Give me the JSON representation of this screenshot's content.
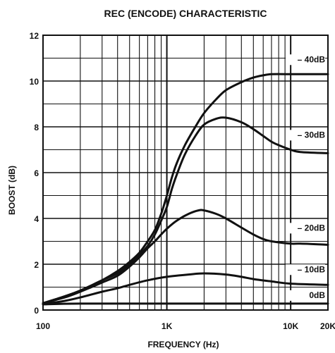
{
  "chart_data": {
    "type": "line",
    "title": "REC (ENCODE) CHARACTERISTIC",
    "xlabel": "FREQUENCY (Hz)",
    "ylabel": "BOOST (dB)",
    "x_scale": "log",
    "xlim": [
      100,
      20000
    ],
    "ylim": [
      0,
      12
    ],
    "grid": true,
    "x_tick_labels": [
      {
        "value": 100,
        "label": "100"
      },
      {
        "value": 1000,
        "label": "1K"
      },
      {
        "value": 10000,
        "label": "10K"
      },
      {
        "value": 20000,
        "label": "20K"
      }
    ],
    "y_ticks": [
      0,
      2,
      4,
      6,
      8,
      10,
      12
    ],
    "series": [
      {
        "name": "40dB",
        "label": "– 40dB",
        "points": [
          [
            100,
            0.3
          ],
          [
            150,
            0.6
          ],
          [
            200,
            0.85
          ],
          [
            300,
            1.3
          ],
          [
            400,
            1.7
          ],
          [
            500,
            2.1
          ],
          [
            600,
            2.5
          ],
          [
            700,
            3.0
          ],
          [
            800,
            3.5
          ],
          [
            900,
            4.2
          ],
          [
            1000,
            5.0
          ],
          [
            1100,
            5.8
          ],
          [
            1200,
            6.4
          ],
          [
            1400,
            7.2
          ],
          [
            1700,
            8.0
          ],
          [
            2000,
            8.6
          ],
          [
            2500,
            9.2
          ],
          [
            3000,
            9.6
          ],
          [
            4000,
            9.95
          ],
          [
            5000,
            10.15
          ],
          [
            6000,
            10.25
          ],
          [
            7000,
            10.3
          ],
          [
            10000,
            10.3
          ],
          [
            12000,
            10.3
          ],
          [
            20000,
            10.3
          ]
        ]
      },
      {
        "name": "30dB",
        "label": "– 30dB",
        "points": [
          [
            100,
            0.3
          ],
          [
            150,
            0.6
          ],
          [
            200,
            0.85
          ],
          [
            300,
            1.3
          ],
          [
            400,
            1.6
          ],
          [
            500,
            2.0
          ],
          [
            600,
            2.4
          ],
          [
            700,
            2.8
          ],
          [
            800,
            3.3
          ],
          [
            900,
            3.9
          ],
          [
            1000,
            4.5
          ],
          [
            1100,
            5.3
          ],
          [
            1200,
            5.9
          ],
          [
            1400,
            6.8
          ],
          [
            1700,
            7.6
          ],
          [
            2000,
            8.1
          ],
          [
            2500,
            8.35
          ],
          [
            3000,
            8.4
          ],
          [
            4000,
            8.2
          ],
          [
            5000,
            7.9
          ],
          [
            6000,
            7.6
          ],
          [
            7000,
            7.35
          ],
          [
            8000,
            7.2
          ],
          [
            10000,
            7.0
          ],
          [
            12000,
            6.9
          ],
          [
            20000,
            6.85
          ]
        ]
      },
      {
        "name": "20dB",
        "label": "– 20dB",
        "points": [
          [
            100,
            0.3
          ],
          [
            150,
            0.55
          ],
          [
            200,
            0.8
          ],
          [
            300,
            1.2
          ],
          [
            400,
            1.5
          ],
          [
            500,
            1.9
          ],
          [
            600,
            2.3
          ],
          [
            700,
            2.7
          ],
          [
            800,
            3.0
          ],
          [
            900,
            3.3
          ],
          [
            1000,
            3.55
          ],
          [
            1200,
            3.9
          ],
          [
            1500,
            4.2
          ],
          [
            1800,
            4.35
          ],
          [
            2000,
            4.35
          ],
          [
            2500,
            4.2
          ],
          [
            3000,
            4.0
          ],
          [
            4000,
            3.6
          ],
          [
            5000,
            3.3
          ],
          [
            6000,
            3.1
          ],
          [
            7000,
            3.0
          ],
          [
            10000,
            2.9
          ],
          [
            12000,
            2.9
          ],
          [
            20000,
            2.85
          ]
        ]
      },
      {
        "name": "10dB",
        "label": "– 10dB",
        "points": [
          [
            100,
            0.25
          ],
          [
            150,
            0.4
          ],
          [
            200,
            0.55
          ],
          [
            300,
            0.8
          ],
          [
            400,
            0.95
          ],
          [
            500,
            1.1
          ],
          [
            700,
            1.3
          ],
          [
            1000,
            1.45
          ],
          [
            1500,
            1.55
          ],
          [
            2000,
            1.6
          ],
          [
            3000,
            1.55
          ],
          [
            4000,
            1.45
          ],
          [
            5000,
            1.35
          ],
          [
            7000,
            1.25
          ],
          [
            10000,
            1.15
          ],
          [
            20000,
            1.1
          ]
        ]
      },
      {
        "name": "0dB",
        "label": "0dB",
        "points": [
          [
            100,
            0.25
          ],
          [
            200,
            0.28
          ],
          [
            1000,
            0.28
          ],
          [
            10000,
            0.28
          ],
          [
            20000,
            0.28
          ]
        ]
      }
    ]
  }
}
